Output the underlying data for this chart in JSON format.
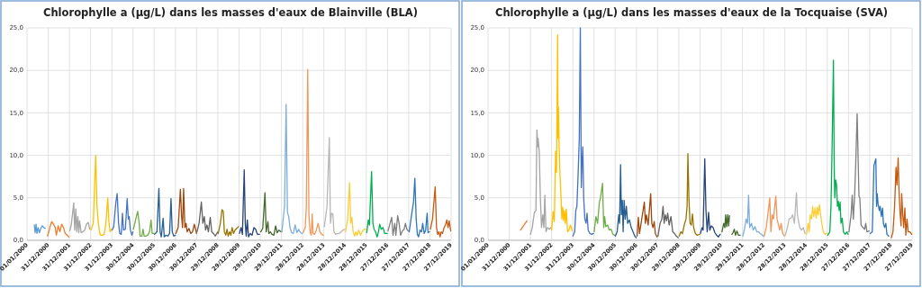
{
  "chart_data": [
    {
      "type": "line",
      "title": "Chlorophylle a (µg/L) dans les masses d'eaux de Blainville (BLA)",
      "grid": true,
      "xlim": [
        "2000-01-01",
        "2019-12-27"
      ],
      "xticks": [
        {
          "value": "2000-01-01",
          "label": "01/01/2000"
        },
        {
          "value": "2000-12-31",
          "label": "31/12/2000"
        },
        {
          "value": "2001-12-31",
          "label": "31/12/2001"
        },
        {
          "value": "2002-12-31",
          "label": "31/12/2002"
        },
        {
          "value": "2003-12-31",
          "label": "31/12/2003"
        },
        {
          "value": "2004-12-30",
          "label": "30/12/2004"
        },
        {
          "value": "2005-12-30",
          "label": "30/12/2005"
        },
        {
          "value": "2006-12-30",
          "label": "30/12/2006"
        },
        {
          "value": "2007-12-30",
          "label": "30/12/2007"
        },
        {
          "value": "2008-12-29",
          "label": "29/12/2008"
        },
        {
          "value": "2009-12-29",
          "label": "29/12/2009"
        },
        {
          "value": "2010-12-29",
          "label": "29/12/2010"
        },
        {
          "value": "2011-12-29",
          "label": "29/12/2011"
        },
        {
          "value": "2012-12-28",
          "label": "28/12/2012"
        },
        {
          "value": "2013-12-28",
          "label": "28/12/2013"
        },
        {
          "value": "2014-12-28",
          "label": "28/12/2014"
        },
        {
          "value": "2015-12-28",
          "label": "28/12/2015"
        },
        {
          "value": "2016-12-27",
          "label": "27/12/2016"
        },
        {
          "value": "2017-12-27",
          "label": "27/12/2017"
        },
        {
          "value": "2018-12-27",
          "label": "27/12/2018"
        },
        {
          "value": "2019-12-27",
          "label": "27/12/2019"
        }
      ],
      "ylim": [
        0,
        25
      ],
      "yticks": [
        {
          "value": 0,
          "label": "0,0"
        },
        {
          "value": 5,
          "label": "5,0"
        },
        {
          "value": 10,
          "label": "10,0"
        },
        {
          "value": 15,
          "label": "15,0"
        },
        {
          "value": 20,
          "label": "20,0"
        },
        {
          "value": 25,
          "label": "25,0"
        }
      ],
      "series": [
        {
          "color": "#5b9bd5",
          "x": [
            "2000-05-05",
            "2000-05-20",
            "2000-06-05",
            "2000-06-20",
            "2000-07-10",
            "2000-08-01",
            "2000-08-25",
            "2000-09-20",
            "2000-10-15",
            "2000-11-10"
          ],
          "values": [
            1.8,
            0.9,
            1.9,
            0.8,
            1.5,
            0.9,
            1.4,
            1.7,
            1.5,
            1.4
          ]
        },
        {
          "color": "#ed7d31",
          "x": [
            "2000-12-20",
            "2001-02-01",
            "2001-03-01",
            "2001-04-01",
            "2001-05-01",
            "2001-05-20",
            "2001-06-20",
            "2001-07-20",
            "2001-08-20",
            "2001-09-20",
            "2001-10-20",
            "2001-11-20",
            "2001-12-20"
          ],
          "values": [
            0.5,
            1.6,
            2.2,
            1.9,
            1.5,
            0.6,
            1.7,
            1.0,
            1.9,
            1.5,
            0.8,
            0.6,
            0.4
          ]
        },
        {
          "color": "#a5a5a5",
          "x": [
            "2002-01-05",
            "2002-02-01",
            "2002-03-15",
            "2002-04-01",
            "2002-04-20",
            "2002-05-05",
            "2002-05-25",
            "2002-06-10",
            "2002-06-25",
            "2002-07-20",
            "2002-08-20",
            "2002-09-20",
            "2002-10-20",
            "2002-11-20",
            "2002-12-15"
          ],
          "values": [
            1.1,
            1.8,
            4.4,
            1.2,
            3.7,
            1.0,
            2.8,
            0.9,
            2.3,
            0.9,
            1.0,
            1.2,
            1.9,
            2.1,
            1.3
          ]
        },
        {
          "color": "#ffc000",
          "x": [
            "2003-01-05",
            "2003-02-15",
            "2003-03-28",
            "2003-04-20",
            "2003-05-10",
            "2003-06-01",
            "2003-06-20",
            "2003-07-20",
            "2003-08-20",
            "2003-09-20",
            "2003-10-22",
            "2003-11-10",
            "2003-12-01",
            "2003-12-25"
          ],
          "values": [
            1.2,
            2.0,
            10.0,
            4.0,
            2.2,
            1.0,
            0.6,
            0.6,
            0.7,
            2.0,
            5.0,
            2.2,
            1.0,
            1.3
          ]
        },
        {
          "color": "#4472c4",
          "x": [
            "2004-01-05",
            "2004-02-01",
            "2004-03-10",
            "2004-04-01",
            "2004-04-25",
            "2004-05-15",
            "2004-06-10",
            "2004-07-01",
            "2004-07-20",
            "2004-08-20",
            "2004-09-20",
            "2004-10-10",
            "2004-10-25",
            "2004-11-15",
            "2004-12-10",
            "2004-12-28"
          ],
          "values": [
            1.2,
            1.6,
            4.5,
            5.5,
            2.0,
            0.8,
            0.7,
            3.2,
            1.2,
            1.3,
            4.9,
            2.5,
            2.8,
            1.2,
            0.6,
            1.0
          ]
        },
        {
          "color": "#70ad47",
          "x": [
            "2005-01-05",
            "2005-02-15",
            "2005-03-20",
            "2005-04-15",
            "2005-05-01",
            "2005-06-01",
            "2005-06-20",
            "2005-07-10",
            "2005-08-10",
            "2005-09-10",
            "2005-10-10",
            "2005-11-05",
            "2005-11-25",
            "2005-12-25"
          ],
          "values": [
            1.3,
            2.5,
            3.4,
            2.0,
            0.5,
            0.5,
            1.3,
            0.5,
            0.5,
            0.6,
            1.0,
            2.4,
            0.8,
            0.8
          ]
        },
        {
          "color": "#255e91",
          "x": [
            "2006-01-05",
            "2006-02-15",
            "2006-03-20",
            "2006-04-10",
            "2006-05-01",
            "2006-06-01",
            "2006-06-20",
            "2006-07-20",
            "2006-08-20",
            "2006-09-20",
            "2006-10-15",
            "2006-11-05",
            "2006-12-01",
            "2006-12-28"
          ],
          "values": [
            0.7,
            1.0,
            6.1,
            1.0,
            0.4,
            2.6,
            0.4,
            0.6,
            0.5,
            0.8,
            4.9,
            1.0,
            0.5,
            0.6
          ]
        },
        {
          "color": "#9e480e",
          "x": [
            "2007-01-05",
            "2007-02-15",
            "2007-03-25",
            "2007-04-15",
            "2007-05-01",
            "2007-05-20",
            "2007-06-10",
            "2007-07-01",
            "2007-07-20",
            "2007-08-20",
            "2007-09-20",
            "2007-10-20",
            "2007-11-20",
            "2007-12-28"
          ],
          "values": [
            0.8,
            1.5,
            6.0,
            2.8,
            1.5,
            6.1,
            1.5,
            2.0,
            1.0,
            1.4,
            0.8,
            1.0,
            1.9,
            0.8
          ]
        },
        {
          "color": "#636363",
          "x": [
            "2008-01-05",
            "2008-02-10",
            "2008-03-20",
            "2008-04-15",
            "2008-05-10",
            "2008-06-01",
            "2008-06-25",
            "2008-07-20",
            "2008-08-20",
            "2008-09-15",
            "2008-10-15",
            "2008-11-15",
            "2008-12-28"
          ],
          "values": [
            1.0,
            2.0,
            4.5,
            2.0,
            2.8,
            1.2,
            1.8,
            1.0,
            2.7,
            1.0,
            0.8,
            0.5,
            1.0
          ]
        },
        {
          "color": "#997300",
          "x": [
            "2009-01-05",
            "2009-02-10",
            "2009-03-10",
            "2009-04-01",
            "2009-04-20",
            "2009-05-15",
            "2009-06-05",
            "2009-06-25",
            "2009-07-20",
            "2009-08-10",
            "2009-09-01",
            "2009-09-25",
            "2009-10-20",
            "2009-11-20",
            "2009-12-20"
          ],
          "values": [
            0.8,
            2.0,
            3.6,
            3.4,
            1.0,
            0.6,
            1.3,
            0.5,
            1.0,
            0.6,
            1.5,
            0.8,
            1.2,
            1.4,
            1.6
          ]
        },
        {
          "color": "#264478",
          "x": [
            "2010-01-05",
            "2010-02-01",
            "2010-02-25",
            "2010-03-28",
            "2010-04-15",
            "2010-05-01",
            "2010-05-20",
            "2010-06-10",
            "2010-07-10",
            "2010-08-10",
            "2010-09-10",
            "2010-10-10",
            "2010-11-10",
            "2010-12-15"
          ],
          "values": [
            0.8,
            1.5,
            0.7,
            8.3,
            2.0,
            0.5,
            2.4,
            0.4,
            0.8,
            0.6,
            1.5,
            1.3,
            0.7,
            0.7
          ]
        },
        {
          "color": "#43682b",
          "x": [
            "2011-01-05",
            "2011-02-10",
            "2011-03-20",
            "2011-04-10",
            "2011-05-10",
            "2011-05-25",
            "2011-06-20",
            "2011-07-20",
            "2011-08-20",
            "2011-09-20",
            "2011-10-15",
            "2011-11-15",
            "2011-12-20"
          ],
          "values": [
            1.0,
            1.4,
            5.6,
            1.0,
            2.2,
            0.8,
            1.0,
            0.7,
            0.6,
            1.7,
            0.9,
            1.2,
            1.0
          ]
        },
        {
          "color": "#7cafdd",
          "x": [
            "2012-01-05",
            "2012-02-20",
            "2012-03-18",
            "2012-04-10",
            "2012-05-01",
            "2012-05-25",
            "2012-06-20",
            "2012-07-20",
            "2012-08-20",
            "2012-09-20",
            "2012-10-20",
            "2012-11-20",
            "2012-12-20"
          ],
          "values": [
            1.0,
            4.0,
            16.0,
            3.3,
            2.8,
            1.5,
            0.9,
            0.8,
            1.8,
            0.9,
            1.3,
            0.9,
            0.8
          ]
        },
        {
          "color": "#f1975a",
          "x": [
            "2013-01-05",
            "2013-02-10",
            "2013-03-01",
            "2013-03-25",
            "2013-04-15",
            "2013-05-05",
            "2013-05-25",
            "2013-06-10",
            "2013-06-25",
            "2013-07-20",
            "2013-08-20",
            "2013-09-20",
            "2013-10-20",
            "2013-11-20",
            "2013-12-20"
          ],
          "values": [
            0.9,
            1.5,
            4.0,
            20.1,
            3.0,
            1.0,
            0.6,
            3.1,
            0.8,
            0.7,
            1.2,
            2.0,
            1.0,
            0.7,
            0.6
          ]
        },
        {
          "color": "#b7b7b7",
          "x": [
            "2014-01-05",
            "2014-02-20",
            "2014-04-01",
            "2014-04-20",
            "2014-05-10",
            "2014-06-01",
            "2014-06-20",
            "2014-07-20",
            "2014-08-20",
            "2014-09-20",
            "2014-10-20",
            "2014-11-20",
            "2014-12-20"
          ],
          "values": [
            1.6,
            4.0,
            12.1,
            2.0,
            3.2,
            3.1,
            1.0,
            0.7,
            0.8,
            0.8,
            1.0,
            1.2,
            1.3
          ]
        },
        {
          "color": "#ffcd33",
          "x": [
            "2015-01-05",
            "2015-02-10",
            "2015-03-15",
            "2015-04-05",
            "2015-04-25",
            "2015-05-15",
            "2015-06-10",
            "2015-07-01",
            "2015-07-25",
            "2015-08-20",
            "2015-09-20",
            "2015-10-20",
            "2015-11-20",
            "2015-12-20"
          ],
          "values": [
            1.0,
            2.5,
            6.8,
            2.0,
            2.7,
            1.0,
            0.5,
            1.0,
            0.6,
            1.2,
            0.6,
            1.0,
            1.3,
            1.3
          ]
        },
        {
          "color": "#00b050",
          "x": [
            "2016-01-05",
            "2016-02-01",
            "2016-02-20",
            "2016-03-28",
            "2016-04-20",
            "2016-05-10",
            "2016-06-05",
            "2016-07-01",
            "2016-07-25",
            "2016-08-15",
            "2016-09-10",
            "2016-10-10",
            "2016-11-10",
            "2016-12-20"
          ],
          "values": [
            0.9,
            2.4,
            1.8,
            8.1,
            2.0,
            1.3,
            1.0,
            0.4,
            1.0,
            1.9,
            1.3,
            1.5,
            0.8,
            0.8
          ]
        },
        {
          "color": "#7f7f7f",
          "x": [
            "2017-01-05",
            "2017-02-10",
            "2017-03-10",
            "2017-04-01",
            "2017-05-01",
            "2017-05-20",
            "2017-06-20",
            "2017-07-15",
            "2017-08-10",
            "2017-09-10",
            "2017-10-10",
            "2017-11-01",
            "2017-11-25",
            "2017-12-20"
          ],
          "values": [
            1.1,
            2.0,
            2.7,
            0.6,
            2.0,
            0.6,
            2.9,
            2.0,
            0.6,
            1.1,
            1.3,
            2.0,
            1.3,
            1.1
          ]
        },
        {
          "color": "#2e75b6",
          "x": [
            "2018-01-05",
            "2018-02-15",
            "2018-03-20",
            "2018-04-12",
            "2018-05-05",
            "2018-05-25",
            "2018-06-15",
            "2018-07-10",
            "2018-08-05",
            "2018-08-25",
            "2018-09-20",
            "2018-10-15",
            "2018-11-10",
            "2018-11-25",
            "2018-12-20"
          ],
          "values": [
            1.0,
            3.0,
            4.5,
            7.3,
            2.5,
            0.7,
            0.4,
            1.2,
            1.0,
            2.0,
            0.8,
            1.2,
            3.2,
            0.9,
            1.0
          ]
        },
        {
          "color": "#c55a11",
          "x": [
            "2019-01-05",
            "2019-02-10",
            "2019-03-28",
            "2019-04-20",
            "2019-05-10",
            "2019-06-01",
            "2019-06-20",
            "2019-07-10",
            "2019-08-01",
            "2019-08-25",
            "2019-09-20",
            "2019-10-15",
            "2019-11-05",
            "2019-11-25",
            "2019-12-20"
          ],
          "values": [
            1.3,
            2.5,
            6.3,
            1.5,
            0.7,
            1.0,
            0.4,
            1.0,
            0.8,
            1.4,
            1.8,
            2.4,
            1.5,
            2.3,
            1.1
          ]
        }
      ]
    },
    {
      "type": "line",
      "title": "Chlorophylle a (µg/L) dans les masses d'eaux de la Tocquaise (SVA)",
      "grid": true,
      "xlim": [
        "2000-01-01",
        "2019-12-27"
      ],
      "xticks": [
        {
          "value": "2000-01-01",
          "label": "01/01/2000"
        },
        {
          "value": "2000-12-31",
          "label": "31/12/2000"
        },
        {
          "value": "2001-12-31",
          "label": "31/12/2001"
        },
        {
          "value": "2002-12-31",
          "label": "31/12/2002"
        },
        {
          "value": "2003-12-31",
          "label": "31/12/2003"
        },
        {
          "value": "2004-12-30",
          "label": "30/12/2004"
        },
        {
          "value": "2005-12-30",
          "label": "30/12/2005"
        },
        {
          "value": "2006-12-30",
          "label": "30/12/2006"
        },
        {
          "value": "2007-12-30",
          "label": "30/12/2007"
        },
        {
          "value": "2008-12-29",
          "label": "29/12/2008"
        },
        {
          "value": "2009-12-29",
          "label": "29/12/2009"
        },
        {
          "value": "2010-12-29",
          "label": "29/12/2010"
        },
        {
          "value": "2011-12-29",
          "label": "29/12/2011"
        },
        {
          "value": "2012-12-28",
          "label": "28/12/2012"
        },
        {
          "value": "2013-12-28",
          "label": "28/12/2013"
        },
        {
          "value": "2014-12-28",
          "label": "28/12/2014"
        },
        {
          "value": "2015-12-28",
          "label": "28/12/2015"
        },
        {
          "value": "2016-12-27",
          "label": "27/12/2016"
        },
        {
          "value": "2017-12-27",
          "label": "27/12/2017"
        },
        {
          "value": "2018-12-27",
          "label": "27/12/2018"
        },
        {
          "value": "2019-12-27",
          "label": "27/12/2019"
        }
      ],
      "ylim": [
        0,
        25
      ],
      "yticks": [
        {
          "value": 0,
          "label": "0,0"
        },
        {
          "value": 5,
          "label": "5,0"
        },
        {
          "value": 10,
          "label": "10,0"
        },
        {
          "value": 15,
          "label": "15,0"
        },
        {
          "value": 20,
          "label": "20,0"
        },
        {
          "value": 25,
          "label": "25,0"
        }
      ],
      "series": [
        {
          "color": "#ed7d31",
          "x": [
            "2001-07-15",
            "2001-11-01"
          ],
          "values": [
            1.2,
            2.3
          ]
        },
        {
          "color": "#a5a5a5",
          "x": [
            "2002-01-01",
            "2002-02-01",
            "2002-02-20",
            "2002-03-10",
            "2002-04-05",
            "2002-04-22",
            "2002-05-05",
            "2002-05-12",
            "2002-06-01",
            "2002-06-20",
            "2002-07-10",
            "2002-08-01",
            "2002-08-20",
            "2002-09-05",
            "2002-09-25",
            "2002-10-20",
            "2002-11-20",
            "2002-12-20"
          ],
          "values": [
            0.7,
            1.5,
            2.5,
            3.3,
            3.5,
            13.0,
            11.0,
            12.0,
            10.5,
            5.0,
            1.5,
            3.0,
            1.5,
            5.3,
            1.0,
            1.5,
            1.3,
            1.5
          ]
        },
        {
          "color": "#ffc000",
          "x": [
            "2003-01-01",
            "2003-01-25",
            "2003-02-15",
            "2003-03-10",
            "2003-03-25",
            "2003-04-13",
            "2003-04-20",
            "2003-04-28",
            "2003-05-10",
            "2003-05-25",
            "2003-06-10",
            "2003-06-25",
            "2003-07-10",
            "2003-07-25",
            "2003-08-10",
            "2003-08-25",
            "2003-09-10",
            "2003-10-01",
            "2003-10-25",
            "2003-11-20",
            "2003-12-20"
          ],
          "values": [
            1.2,
            3.4,
            2.2,
            10.5,
            8.0,
            24.2,
            12.0,
            15.7,
            11.0,
            7.5,
            5.2,
            2.5,
            3.9,
            2.3,
            3.5,
            2.0,
            3.7,
            1.0,
            1.2,
            1.8,
            1.1
          ]
        },
        {
          "color": "#4472c4",
          "x": [
            "2004-01-01",
            "2004-02-01",
            "2004-02-20",
            "2004-03-10",
            "2004-04-01",
            "2004-04-20",
            "2004-05-08",
            "2004-05-15",
            "2004-05-25",
            "2004-06-05",
            "2004-06-20",
            "2004-07-05",
            "2004-07-25",
            "2004-08-15",
            "2004-09-01",
            "2004-09-20",
            "2004-10-20",
            "2004-11-20",
            "2004-12-20"
          ],
          "values": [
            0.5,
            1.0,
            3.5,
            4.0,
            8.0,
            12.0,
            25.0,
            17.1,
            6.2,
            9.0,
            11.0,
            5.0,
            2.5,
            2.0,
            3.2,
            1.2,
            0.8,
            0.7,
            0.8
          ]
        },
        {
          "color": "#70ad47",
          "x": [
            "2005-01-01",
            "2005-02-01",
            "2005-03-01",
            "2005-04-01",
            "2005-04-20",
            "2005-05-25",
            "2005-06-15",
            "2005-07-01",
            "2005-07-20",
            "2005-08-20",
            "2005-09-20",
            "2005-10-20",
            "2005-11-20",
            "2005-12-20"
          ],
          "values": [
            1.0,
            2.8,
            2.0,
            4.5,
            5.0,
            6.7,
            1.5,
            2.8,
            1.6,
            1.8,
            1.2,
            1.3,
            0.7,
            0.6
          ]
        },
        {
          "color": "#255e91",
          "x": [
            "2006-01-01",
            "2006-02-01",
            "2006-03-01",
            "2006-03-15",
            "2006-04-01",
            "2006-04-15",
            "2006-05-01",
            "2006-05-15",
            "2006-06-01",
            "2006-06-20",
            "2006-07-10",
            "2006-08-01",
            "2006-09-01",
            "2006-10-01",
            "2006-11-01",
            "2006-12-01",
            "2006-12-25"
          ],
          "values": [
            0.5,
            1.0,
            3.0,
            2.0,
            8.9,
            3.0,
            4.7,
            1.0,
            4.7,
            2.5,
            4.0,
            2.0,
            2.4,
            1.5,
            1.0,
            0.5,
            0.3
          ]
        },
        {
          "color": "#9e480e",
          "x": [
            "2007-01-10",
            "2007-02-01",
            "2007-02-20",
            "2007-03-20",
            "2007-05-15",
            "2007-06-01",
            "2007-06-20",
            "2007-07-20",
            "2007-09-01",
            "2007-09-20",
            "2007-10-10",
            "2007-11-01",
            "2007-11-20",
            "2007-12-20"
          ],
          "values": [
            0.5,
            2.7,
            0.8,
            2.0,
            4.5,
            2.0,
            3.0,
            1.8,
            5.5,
            2.0,
            1.5,
            2.2,
            0.8,
            0.4
          ]
        },
        {
          "color": "#636363",
          "x": [
            "2008-01-05",
            "2008-02-10",
            "2008-03-10",
            "2008-04-01",
            "2008-04-20",
            "2008-05-10",
            "2008-06-01",
            "2008-06-20",
            "2008-07-15",
            "2008-08-15",
            "2008-09-15",
            "2008-10-15",
            "2008-11-15",
            "2008-12-20"
          ],
          "values": [
            0.5,
            2.0,
            2.5,
            4.0,
            2.0,
            3.0,
            2.3,
            3.2,
            1.8,
            2.8,
            1.0,
            0.8,
            0.5,
            0.3
          ]
        },
        {
          "color": "#997300",
          "x": [
            "2009-01-05",
            "2009-02-01",
            "2009-03-01",
            "2009-04-01",
            "2009-05-01",
            "2009-05-20",
            "2009-06-03",
            "2009-06-20",
            "2009-07-10",
            "2009-08-01",
            "2009-08-20",
            "2009-09-10",
            "2009-10-10",
            "2009-11-10",
            "2009-12-20"
          ],
          "values": [
            0.5,
            1.0,
            0.8,
            1.8,
            2.5,
            4.0,
            10.2,
            5.0,
            2.0,
            1.8,
            3.1,
            1.5,
            0.8,
            0.6,
            0.7
          ]
        },
        {
          "color": "#264478",
          "x": [
            "2010-01-05",
            "2010-02-01",
            "2010-02-20",
            "2010-03-20",
            "2010-04-10",
            "2010-05-01",
            "2010-05-25",
            "2010-06-15",
            "2010-07-10",
            "2010-08-10",
            "2010-09-10",
            "2010-10-10",
            "2010-11-10",
            "2010-12-10"
          ],
          "values": [
            0.8,
            1.5,
            1.2,
            9.6,
            3.5,
            1.0,
            3.3,
            1.2,
            1.7,
            1.5,
            0.9,
            0.6,
            0.4,
            0.7
          ]
        },
        {
          "color": "#43682b",
          "x": [
            "2011-01-10",
            "2011-02-10",
            "2011-03-01",
            "2011-03-15",
            "2011-04-01",
            "2011-04-20",
            "2011-05-05",
            "2011-05-20",
            "2011-06-10",
            "2011-07-01",
            "2011-07-20",
            "2011-08-10",
            "2011-09-01",
            "2011-09-25",
            "2011-10-20",
            "2011-11-20"
          ],
          "values": [
            1.0,
            2.0,
            1.5,
            3.0,
            1.6,
            3.0,
            1.7,
            2.9,
            null,
            0.7,
            0.9,
            1.3,
            0.6,
            1.1,
            0.6,
            0.6
          ]
        },
        {
          "color": "#7cafdd",
          "x": [
            "2012-01-05",
            "2012-02-01",
            "2012-03-01",
            "2012-03-25",
            "2012-04-12",
            "2012-05-01",
            "2012-06-01",
            "2012-07-01",
            "2012-08-01",
            "2012-09-01",
            "2012-10-01",
            "2012-11-01",
            "2012-12-20"
          ],
          "values": [
            0.5,
            1.3,
            2.5,
            2.0,
            5.3,
            1.5,
            2.0,
            1.2,
            1.6,
            1.0,
            1.0,
            0.8,
            0.5
          ]
        },
        {
          "color": "#f1975a",
          "x": [
            "2013-01-05",
            "2013-02-10",
            "2013-03-10",
            "2013-04-12",
            "2013-05-01",
            "2013-05-25",
            "2013-06-15",
            "2013-07-25",
            "2013-08-15",
            "2013-09-10",
            "2013-10-01",
            "2013-10-25",
            "2013-11-20",
            "2013-12-20"
          ],
          "values": [
            0.5,
            1.5,
            3.0,
            5.0,
            1.0,
            3.0,
            2.5,
            5.2,
            2.5,
            1.8,
            1.2,
            2.0,
            0.8,
            0.5
          ]
        },
        {
          "color": "#b7b7b7",
          "x": [
            "2014-01-05",
            "2014-02-10",
            "2014-03-10",
            "2014-04-10",
            "2014-05-10",
            "2014-06-10",
            "2014-07-15",
            "2014-08-01",
            "2014-08-20",
            "2014-09-10",
            "2014-10-10",
            "2014-11-10",
            "2014-12-10"
          ],
          "values": [
            0.6,
            1.5,
            2.5,
            2.6,
            3.0,
            2.0,
            5.6,
            3.0,
            2.3,
            1.5,
            1.2,
            1.5,
            0.8
          ]
        },
        {
          "color": "#ffcd33",
          "x": [
            "2015-01-05",
            "2015-02-01",
            "2015-02-20",
            "2015-03-10",
            "2015-04-01",
            "2015-04-20",
            "2015-05-10",
            "2015-06-01",
            "2015-06-20",
            "2015-07-10",
            "2015-07-25",
            "2015-08-15",
            "2015-09-05",
            "2015-09-25",
            "2015-10-20",
            "2015-11-20",
            "2015-12-20"
          ],
          "values": [
            0.7,
            2.0,
            1.0,
            3.0,
            2.5,
            4.0,
            2.8,
            3.8,
            2.6,
            3.9,
            3.0,
            4.2,
            3.0,
            2.0,
            1.0,
            0.7,
            0.8
          ]
        },
        {
          "color": "#00b050",
          "x": [
            "2016-01-05",
            "2016-02-10",
            "2016-03-01",
            "2016-03-20",
            "2016-04-12",
            "2016-04-25",
            "2016-05-05",
            "2016-05-20",
            "2016-06-05",
            "2016-06-20",
            "2016-07-05",
            "2016-07-20",
            "2016-08-05",
            "2016-08-20",
            "2016-09-10",
            "2016-10-01",
            "2016-11-01",
            "2016-12-01",
            "2016-12-20"
          ],
          "values": [
            0.6,
            1.0,
            4.0,
            11.0,
            21.2,
            9.0,
            5.0,
            7.1,
            6.5,
            4.0,
            4.6,
            3.5,
            4.5,
            2.0,
            2.6,
            1.0,
            0.7,
            1.0,
            0.7
          ]
        },
        {
          "color": "#7f7f7f",
          "x": [
            "2017-01-05",
            "2017-02-10",
            "2017-03-01",
            "2017-03-20",
            "2017-04-10",
            "2017-05-01",
            "2017-05-25",
            "2017-06-10",
            "2017-06-25",
            "2017-07-10",
            "2017-08-01",
            "2017-09-01",
            "2017-10-01",
            "2017-10-20",
            "2017-11-10",
            "2017-12-20"
          ],
          "values": [
            1.0,
            3.0,
            5.3,
            2.5,
            5.0,
            9.0,
            14.9,
            10.0,
            5.2,
            5.0,
            1.8,
            1.5,
            1.3,
            2.0,
            1.0,
            1.1
          ]
        },
        {
          "color": "#2e75b6",
          "x": [
            "2018-01-05",
            "2018-02-10",
            "2018-03-10",
            "2018-04-12",
            "2018-04-25",
            "2018-05-05",
            "2018-05-20",
            "2018-06-10",
            "2018-06-25",
            "2018-07-15",
            "2018-08-05",
            "2018-08-20",
            "2018-09-10",
            "2018-10-01",
            "2018-10-20",
            "2018-11-20"
          ],
          "values": [
            0.8,
            1.0,
            8.8,
            9.6,
            4.0,
            5.5,
            4.3,
            3.5,
            4.0,
            2.8,
            3.8,
            2.0,
            1.5,
            2.0,
            0.7,
            0.5
          ]
        },
        {
          "color": "#c55a11",
          "x": [
            "2019-01-05",
            "2019-02-01",
            "2019-03-01",
            "2019-03-25",
            "2019-04-10",
            "2019-05-01",
            "2019-05-15",
            "2019-06-01",
            "2019-06-20",
            "2019-07-01",
            "2019-07-20",
            "2019-08-05",
            "2019-08-25",
            "2019-09-10",
            "2019-10-01",
            "2019-10-20",
            "2019-11-20",
            "2019-12-20"
          ],
          "values": [
            0.3,
            1.0,
            4.0,
            8.6,
            6.5,
            9.7,
            6.0,
            3.5,
            1.7,
            5.5,
            3.0,
            1.5,
            3.8,
            0.6,
            2.5,
            1.0,
            1.0,
            0.7
          ]
        }
      ]
    }
  ]
}
